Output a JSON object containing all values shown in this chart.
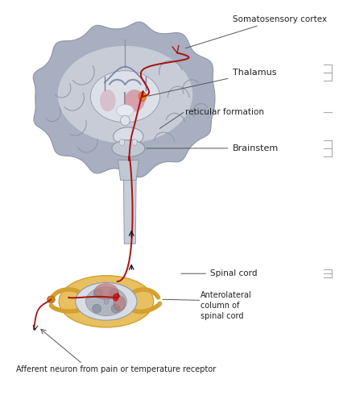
{
  "background_color": "#ffffff",
  "figure_width": 4.27,
  "figure_height": 4.96,
  "labels": {
    "somatosensory_cortex": "Somatosensory cortex",
    "thalamus": "Thalamus",
    "reticular_formation": "reticular formation",
    "brainstem": "Brainstem",
    "spinal_cord": "Spinal cord",
    "anterolateral": "Anterolateral\ncolumn of\nspinal cord",
    "afferent": "Afferent neuron from pain or temperature receptor"
  },
  "brain_outer_color": "#a8afc0",
  "brain_gyri_color": "#8c95a8",
  "brain_inner_color": "#cdd2dc",
  "brain_white_color": "#e0e3ea",
  "ventricle_color": "#b0b8cc",
  "thalamus_pink": "#d4808a",
  "thalamus_dot": "#cc2233",
  "brainstem_color": "#c0c8d4",
  "brainstem_light": "#d8dde6",
  "spinal_tube_color": "#c8cdd8",
  "sc_outer_color": "#c8cdd8",
  "sc_inner_color": "#b0b5c0",
  "sc_gray_color": "#9099a8",
  "sc_dorsal_color": "#c07878",
  "sc_ventral_color": "#c09080",
  "yellow_color": "#d4a030",
  "yellow_light": "#e8c060",
  "nerve_color": "#aa1111",
  "arrow_color": "#111111",
  "line_color": "#555555",
  "text_color": "#222222",
  "fontsize_label": 7.5,
  "fontsize_afferent": 7.0
}
